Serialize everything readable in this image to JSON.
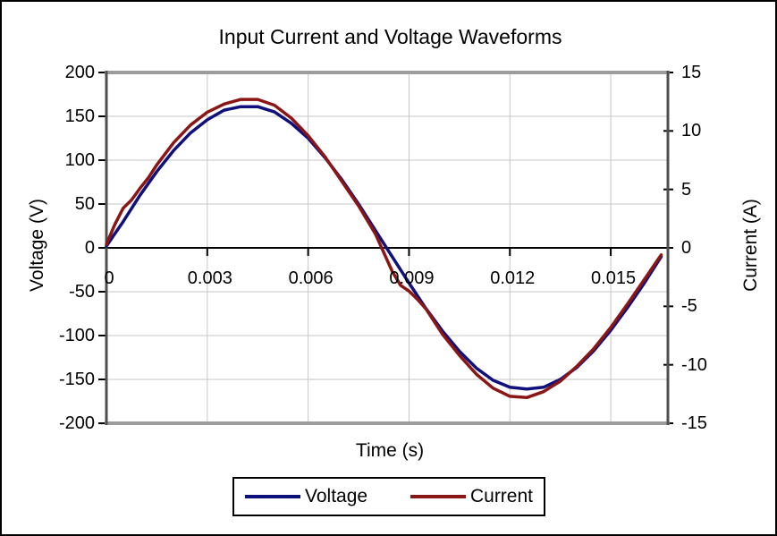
{
  "chart_data": {
    "type": "line",
    "title": "Input Current and Voltage Waveforms",
    "xlabel": "Time (s)",
    "ylabel_left": "Voltage (V)",
    "ylabel_right": "Current (A)",
    "xlim": [
      0,
      0.0167
    ],
    "ylim_left": [
      -200,
      200
    ],
    "ylim_right": [
      -15,
      15
    ],
    "x_ticks": [
      0,
      0.003,
      0.006,
      0.009,
      0.012,
      0.015
    ],
    "x_tick_labels": [
      "0",
      "0.003",
      "0.006",
      "0.009",
      "0.012",
      "0.015"
    ],
    "y_ticks_left": [
      200,
      150,
      100,
      50,
      0,
      -50,
      -100,
      -150,
      -200
    ],
    "y_ticks_right": [
      15,
      10,
      5,
      0,
      -5,
      -10,
      -15
    ],
    "grid": true,
    "legend_position": "bottom",
    "colors": {
      "grid": "#c6c6c6",
      "plot_border": "#9c9c9c",
      "axis_line": "#4f4f4f",
      "zero_line": "#000000",
      "text": "#000000",
      "background": "#ffffff"
    },
    "series": [
      {
        "name": "Voltage",
        "axis": "left",
        "color": "#10107d",
        "x": [
          0,
          0.0005,
          0.001,
          0.0015,
          0.002,
          0.0025,
          0.003,
          0.0035,
          0.004,
          0.0045,
          0.005,
          0.0055,
          0.006,
          0.0065,
          0.007,
          0.0075,
          0.008,
          0.0085,
          0.009,
          0.0095,
          0.01,
          0.0105,
          0.011,
          0.0115,
          0.012,
          0.0125,
          0.013,
          0.0135,
          0.014,
          0.0145,
          0.015,
          0.0155,
          0.016,
          0.0165
        ],
        "values": [
          2,
          30,
          60,
          87,
          111,
          131,
          146,
          157,
          161,
          161,
          155,
          142,
          125,
          103,
          78,
          50,
          20,
          -10,
          -40,
          -69,
          -95,
          -118,
          -137,
          -151,
          -159,
          -161,
          -159,
          -150,
          -136,
          -117,
          -94,
          -68,
          -40,
          -10
        ]
      },
      {
        "name": "Current",
        "axis": "right",
        "color": "#8a1616",
        "x": [
          0,
          0.00025,
          0.0005,
          0.00075,
          0.001,
          0.00125,
          0.0015,
          0.002,
          0.0025,
          0.003,
          0.0035,
          0.004,
          0.0045,
          0.005,
          0.0055,
          0.006,
          0.0065,
          0.007,
          0.0075,
          0.008,
          0.0085,
          0.00875,
          0.009,
          0.00925,
          0.0095,
          0.01,
          0.0105,
          0.011,
          0.0115,
          0.012,
          0.0125,
          0.013,
          0.0135,
          0.014,
          0.0145,
          0.015,
          0.0155,
          0.016,
          0.0165
        ],
        "values": [
          0.3,
          2.0,
          3.4,
          4.1,
          5.1,
          6.0,
          7.1,
          9.0,
          10.5,
          11.6,
          12.3,
          12.7,
          12.7,
          12.2,
          11.1,
          9.6,
          7.8,
          5.7,
          3.6,
          1.2,
          -2.0,
          -3.2,
          -3.7,
          -4.4,
          -5.2,
          -7.4,
          -9.2,
          -10.8,
          -12.0,
          -12.7,
          -12.8,
          -12.3,
          -11.4,
          -10.1,
          -8.6,
          -6.8,
          -4.8,
          -2.7,
          -0.6
        ]
      }
    ]
  }
}
